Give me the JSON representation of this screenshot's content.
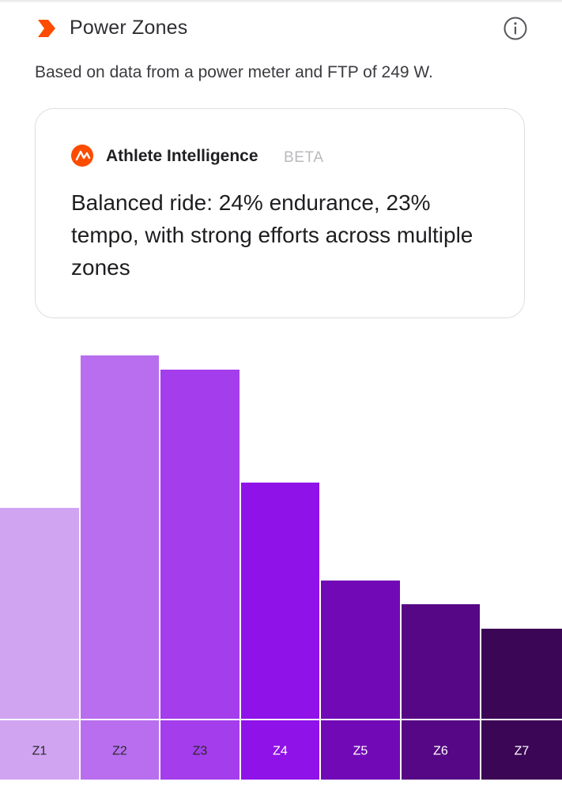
{
  "header": {
    "title": "Power Zones",
    "icon": "orange-chevron-icon",
    "info_icon": "info-icon"
  },
  "subtitle": "Based on data from a power meter and FTP of 249 W.",
  "athlete_intelligence": {
    "name": "Athlete Intelligence",
    "badge": "BETA",
    "summary": "Balanced ride: 24% endurance, 23% tempo, with strong efforts across multiple zones"
  },
  "colors": {
    "accent": "#fc4c02",
    "zones": [
      "#d1a4f2",
      "#b86eee",
      "#a43deb",
      "#8f12e8",
      "#7209b7",
      "#560785",
      "#3b0655"
    ]
  },
  "chart_data": {
    "type": "bar",
    "categories": [
      "Z1",
      "Z2",
      "Z3",
      "Z4",
      "Z5",
      "Z6",
      "Z7"
    ],
    "values": [
      13.1,
      22.6,
      21.7,
      14.7,
      8.6,
      7.1,
      5.6
    ],
    "ylim": [
      0,
      22.6
    ],
    "grid": false,
    "legend": "none"
  }
}
